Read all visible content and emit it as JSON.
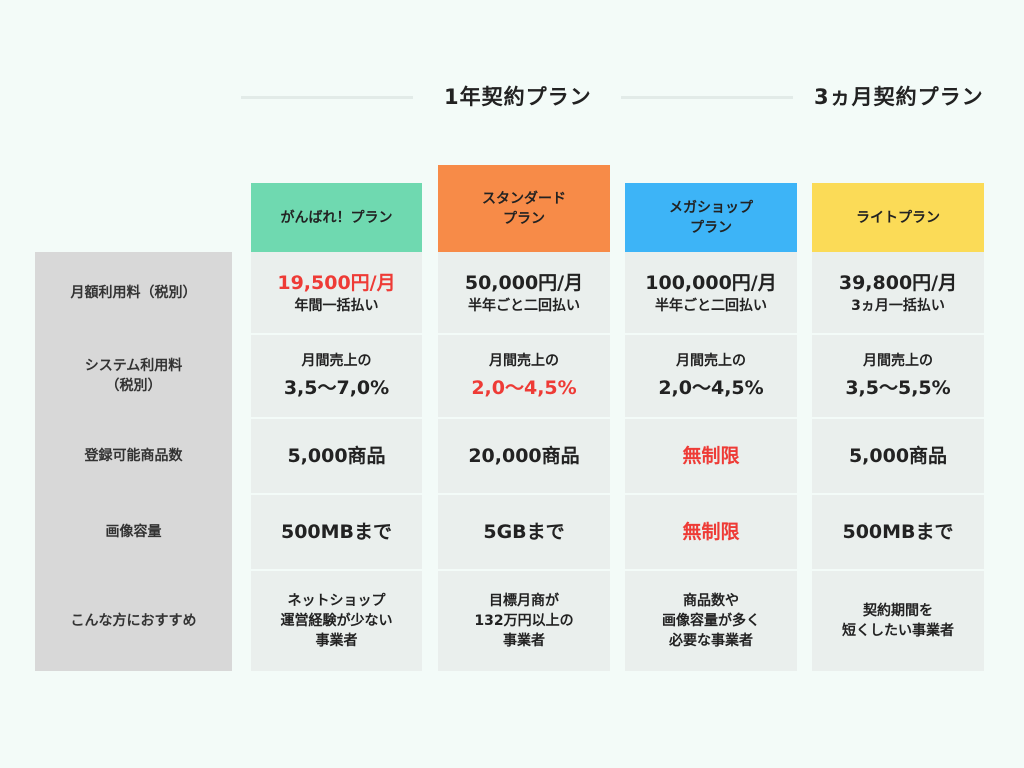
{
  "groups": {
    "annual": "1年契約プラン",
    "quarter": "3ヵ月契約プラン"
  },
  "row_labels": {
    "monthly_fee": "月額利用料（税別）",
    "system_fee_1": "システム利用料",
    "system_fee_2": "（税別）",
    "items": "登録可能商品数",
    "images": "画像容量",
    "recommended": "こんな方におすすめ"
  },
  "plans": {
    "ganbare": {
      "name": [
        "がんばれ！プラン"
      ],
      "color": "#6fd9b0",
      "monthly": "19,500円/月",
      "monthly_note": "年間一括払い",
      "system_note": "月間売上の",
      "system_rate": "3,5〜7,0%",
      "items": "5,000商品",
      "images": "500MBまで",
      "recommended": [
        "ネットショップ",
        "運営経験が少ない",
        "事業者"
      ]
    },
    "standard": {
      "name": [
        "スタンダード",
        "プラン"
      ],
      "color": "#f78b48",
      "monthly": "50,000円/月",
      "monthly_note": "半年ごと二回払い",
      "system_note": "月間売上の",
      "system_rate": "2,0〜4,5%",
      "items": "20,000商品",
      "images": "5GBまで",
      "recommended": [
        "目標月商が",
        "132万円以上の",
        "事業者"
      ]
    },
    "megashop": {
      "name": [
        "メガショップ",
        "プラン"
      ],
      "color": "#3db4f7",
      "monthly": "100,000円/月",
      "monthly_note": "半年ごと二回払い",
      "system_note": "月間売上の",
      "system_rate": "2,0〜4,5%",
      "items": "無制限",
      "images": "無制限",
      "recommended": [
        "商品数や",
        "画像容量が多く",
        "必要な事業者"
      ]
    },
    "lite": {
      "name": [
        "ライトプラン"
      ],
      "color": "#fbdb57",
      "monthly": "39,800円/月",
      "monthly_note": "3ヵ月一括払い",
      "system_note": "月間売上の",
      "system_rate": "3,5〜5,5%",
      "items": "5,000商品",
      "images": "500MBまで",
      "recommended": [
        "契約期間を",
        "短くしたい事業者"
      ]
    }
  },
  "colors": {
    "highlight_red": "#ee3b36",
    "cell_bg": "#eaefed",
    "row_header_bg": "#d8d8d8"
  }
}
